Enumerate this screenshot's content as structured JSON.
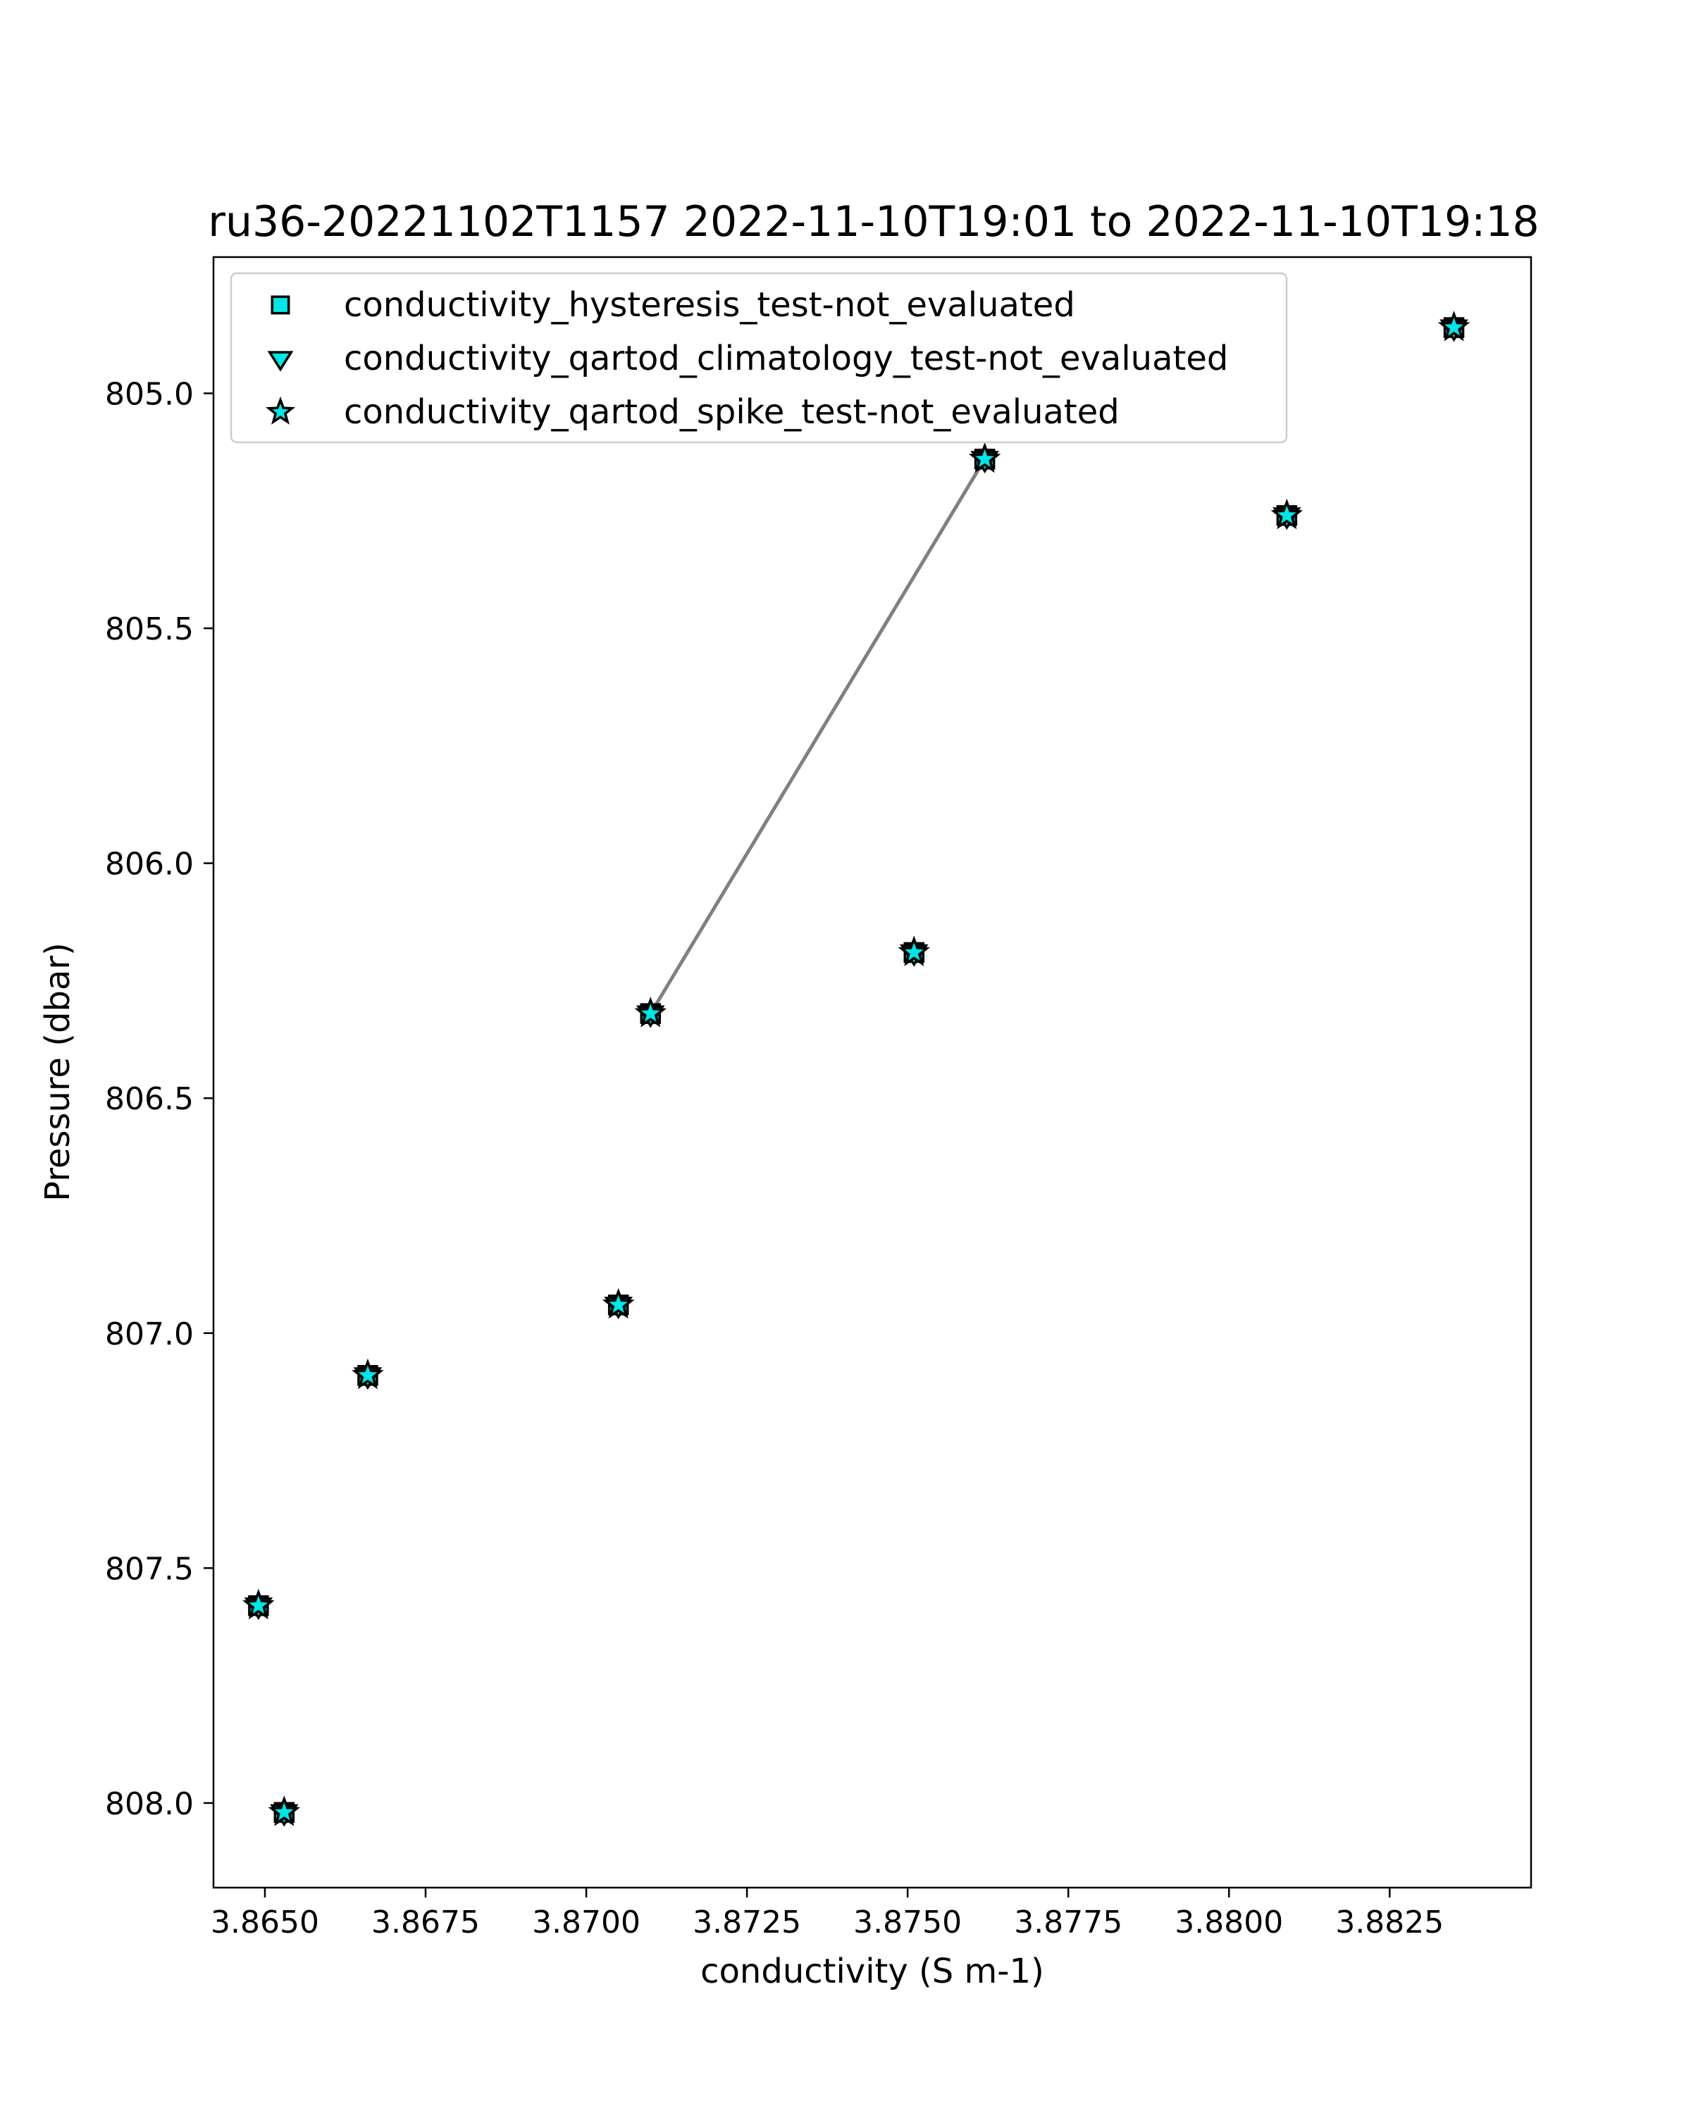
{
  "chart_data": {
    "type": "scatter",
    "title": "ru36-20221102T1157 2022-11-10T19:01 to 2022-11-10T19:18",
    "xlabel": "conductivity (S m-1)",
    "ylabel": "Pressure (dbar)",
    "xlim": [
      3.8642,
      3.8847
    ],
    "ylim": [
      808.18,
      804.71
    ],
    "y_inverted": true,
    "grid": false,
    "legend_position": "top-left",
    "x_ticks": [
      3.865,
      3.8675,
      3.87,
      3.8725,
      3.875,
      3.8775,
      3.88,
      3.8825
    ],
    "x_tick_labels": [
      "3.8650",
      "3.8675",
      "3.8700",
      "3.8725",
      "3.8750",
      "3.8775",
      "3.8800",
      "3.8825"
    ],
    "y_ticks": [
      805.0,
      805.5,
      806.0,
      806.5,
      807.0,
      807.5,
      808.0
    ],
    "y_tick_labels": [
      "805.0",
      "805.5",
      "806.0",
      "806.5",
      "807.0",
      "807.5",
      "808.0"
    ],
    "line": {
      "color": "#808080",
      "x": [
        3.871,
        3.8762
      ],
      "y": [
        806.32,
        805.14
      ]
    },
    "series": [
      {
        "name": "conductivity_hysteresis_test-not_evaluated",
        "marker": "square",
        "color": "#00e5e5",
        "x": [
          3.8649,
          3.8653,
          3.8666,
          3.8705,
          3.871,
          3.8751,
          3.8762,
          3.8809,
          3.8835
        ],
        "y": [
          807.58,
          808.02,
          807.09,
          806.94,
          806.32,
          806.19,
          805.14,
          805.26,
          804.86
        ]
      },
      {
        "name": "conductivity_qartod_climatology_test-not_evaluated",
        "marker": "triangle-down",
        "color": "#00e5e5",
        "x": [
          3.8649,
          3.8653,
          3.8666,
          3.8705,
          3.871,
          3.8751,
          3.8762,
          3.8809,
          3.8835
        ],
        "y": [
          807.58,
          808.02,
          807.09,
          806.94,
          806.32,
          806.19,
          805.14,
          805.26,
          804.86
        ]
      },
      {
        "name": "conductivity_qartod_spike_test-not_evaluated",
        "marker": "star",
        "color": "#00e5e5",
        "x": [
          3.8649,
          3.8653,
          3.8666,
          3.8705,
          3.871,
          3.8751,
          3.8762,
          3.8809,
          3.8835
        ],
        "y": [
          807.58,
          808.02,
          807.09,
          806.94,
          806.32,
          806.19,
          805.14,
          805.26,
          804.86
        ]
      }
    ]
  }
}
